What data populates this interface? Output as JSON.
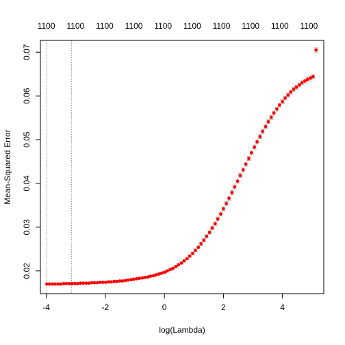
{
  "chart_data": {
    "type": "scatter",
    "title": "",
    "xlabel": "log(Lambda)",
    "ylabel": "Mean-Squared Error",
    "xlim": [
      -4.2,
      5.4
    ],
    "ylim": [
      0.0148,
      0.0727
    ],
    "x_ticks": [
      -4,
      -2,
      0,
      2,
      4
    ],
    "y_ticks": [
      0.02,
      0.03,
      0.04,
      0.05,
      0.06,
      0.07
    ],
    "top_axis_labels": [
      "1100",
      "1100",
      "1100",
      "1100",
      "1100",
      "1100",
      "1100",
      "1100",
      "1100",
      "1100"
    ],
    "vlines_x": [
      -3.98,
      -3.15
    ],
    "point_color": "#ff0000",
    "errorbar_color": "#b3b3b3",
    "grid": false,
    "legend": "none",
    "series": [
      {
        "x": [
          -3.98,
          -3.89,
          -3.79,
          -3.7,
          -3.6,
          -3.51,
          -3.41,
          -3.32,
          -3.22,
          -3.13,
          -3.03,
          -2.94,
          -2.84,
          -2.75,
          -2.65,
          -2.56,
          -2.46,
          -2.37,
          -2.27,
          -2.18,
          -2.08,
          -1.99,
          -1.89,
          -1.8,
          -1.7,
          -1.61,
          -1.51,
          -1.42,
          -1.32,
          -1.23,
          -1.13,
          -1.04,
          -0.94,
          -0.85,
          -0.75,
          -0.66,
          -0.56,
          -0.47,
          -0.37,
          -0.28,
          -0.18,
          -0.09,
          0.01,
          0.1,
          0.2,
          0.29,
          0.39,
          0.48,
          0.58,
          0.67,
          0.77,
          0.86,
          0.96,
          1.05,
          1.15,
          1.24,
          1.34,
          1.43,
          1.53,
          1.62,
          1.72,
          1.81,
          1.91,
          2.0,
          2.1,
          2.19,
          2.29,
          2.38,
          2.48,
          2.57,
          2.67,
          2.76,
          2.86,
          2.95,
          3.05,
          3.14,
          3.24,
          3.33,
          3.43,
          3.52,
          3.62,
          3.71,
          3.81,
          3.9,
          4.0,
          4.09,
          4.19,
          4.28,
          4.38,
          4.47,
          4.57,
          4.66,
          4.76,
          4.85,
          4.95,
          5.04,
          5.14
        ],
        "y": [
          0.017,
          0.017,
          0.017,
          0.017,
          0.017,
          0.017,
          0.0171,
          0.0171,
          0.0171,
          0.0171,
          0.0171,
          0.0171,
          0.0172,
          0.0172,
          0.0172,
          0.0172,
          0.0173,
          0.0173,
          0.0173,
          0.0174,
          0.0174,
          0.0174,
          0.0175,
          0.0175,
          0.0176,
          0.0176,
          0.0177,
          0.0177,
          0.0178,
          0.0179,
          0.018,
          0.0181,
          0.0182,
          0.0183,
          0.0184,
          0.0185,
          0.0186,
          0.0188,
          0.0189,
          0.0191,
          0.0193,
          0.0195,
          0.0197,
          0.02,
          0.0203,
          0.0206,
          0.021,
          0.0214,
          0.0218,
          0.0223,
          0.0228,
          0.0234,
          0.024,
          0.0247,
          0.0254,
          0.0262,
          0.027,
          0.0279,
          0.0288,
          0.0298,
          0.0308,
          0.0319,
          0.033,
          0.0342,
          0.0354,
          0.0366,
          0.0379,
          0.0392,
          0.0405,
          0.0418,
          0.0431,
          0.0444,
          0.0457,
          0.047,
          0.0483,
          0.0495,
          0.0507,
          0.0519,
          0.053,
          0.0541,
          0.0551,
          0.0561,
          0.057,
          0.0579,
          0.0587,
          0.0595,
          0.0602,
          0.0609,
          0.0615,
          0.062,
          0.0625,
          0.063,
          0.0634,
          0.0638,
          0.0641,
          0.0644,
          0.0705
        ],
        "errorbar": [
          0.00012,
          0.00012,
          0.00012,
          0.00012,
          0.00012,
          0.00012,
          0.00012,
          0.00012,
          0.00012,
          0.00012,
          0.00012,
          0.00012,
          0.00012,
          0.00012,
          0.00012,
          0.00012,
          0.00012,
          0.00012,
          0.00012,
          0.00012,
          0.00012,
          0.00013,
          0.00013,
          0.00013,
          0.00013,
          0.00013,
          0.00013,
          0.00013,
          0.00013,
          0.00014,
          0.00014,
          0.00014,
          0.00014,
          0.00015,
          0.00015,
          0.00015,
          0.00016,
          0.00016,
          0.00017,
          0.00017,
          0.00018,
          0.00019,
          0.00019,
          0.0002,
          0.00021,
          0.00022,
          0.00023,
          0.00024,
          0.00026,
          0.00027,
          0.00028,
          0.0003,
          0.00031,
          0.00033,
          0.00034,
          0.00035,
          0.00037,
          0.00038,
          0.00039,
          0.0004,
          0.00041,
          0.00042,
          0.00043,
          0.00044,
          0.00044,
          0.00045,
          0.00045,
          0.00046,
          0.00046,
          0.00046,
          0.00046,
          0.00046,
          0.00046,
          0.00045,
          0.00045,
          0.00045,
          0.00045,
          0.00044,
          0.00044,
          0.00044,
          0.00044,
          0.00044,
          0.00044,
          0.00044,
          0.00044,
          0.00044,
          0.00044,
          0.00044,
          0.00044,
          0.00045,
          0.00045,
          0.00045,
          0.00045,
          0.00046,
          0.00046,
          0.00046,
          0.0005
        ]
      }
    ]
  }
}
